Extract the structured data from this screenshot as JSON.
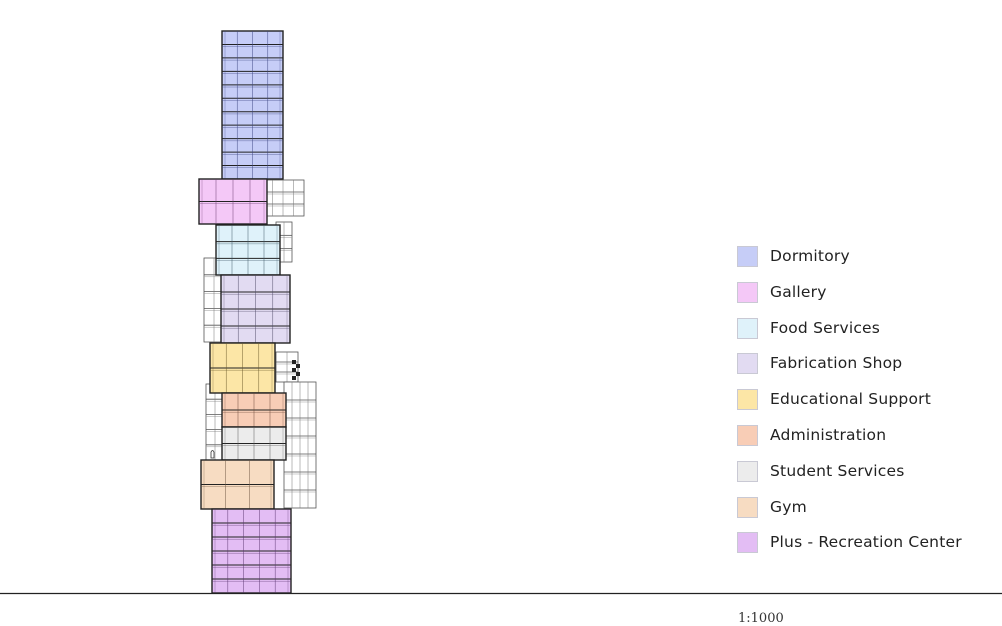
{
  "programs": [
    {
      "id": "dormitory",
      "label": "Dormitory",
      "color": "#c6cdf7",
      "stroke": "#3b4480"
    },
    {
      "id": "gallery",
      "label": "Gallery",
      "color": "#f4c8f7",
      "stroke": "#6a3c70"
    },
    {
      "id": "food",
      "label": "Food Services",
      "color": "#dff2fa",
      "stroke": "#3c5866"
    },
    {
      "id": "fabrication",
      "label": "Fabrication Shop",
      "color": "#e2dbf2",
      "stroke": "#4e4866"
    },
    {
      "id": "educational",
      "label": "Educational Support",
      "color": "#fce6a6",
      "stroke": "#6b5a2a"
    },
    {
      "id": "administration",
      "label": "Administration",
      "color": "#f8cdb6",
      "stroke": "#6b4838"
    },
    {
      "id": "student",
      "label": "Student Services",
      "color": "#ececec",
      "stroke": "#555555"
    },
    {
      "id": "gym",
      "label": "Gym",
      "color": "#f7dcc2",
      "stroke": "#6b5440"
    },
    {
      "id": "plus",
      "label": "Plus - Recreation Center",
      "color": "#e3bdf4",
      "stroke": "#5a3570"
    }
  ],
  "footer_text": "1:1000"
}
